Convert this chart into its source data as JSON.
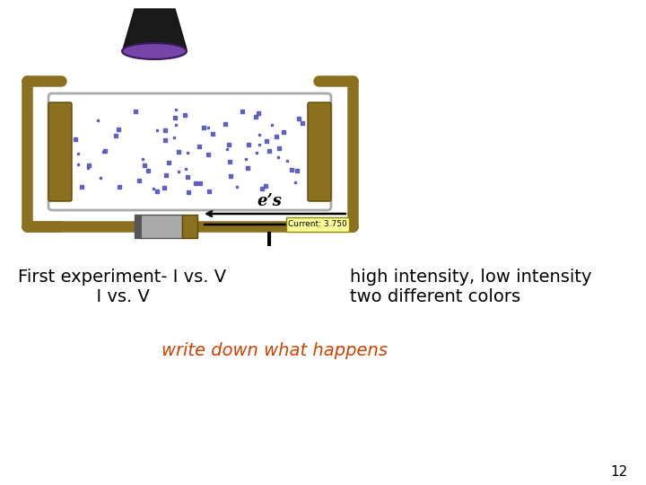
{
  "bg_color": "#ffffff",
  "text_line1": "First experiment- I vs. V",
  "text_line1_right": "high intensity, low intensity",
  "text_line2": "I vs. V",
  "text_line2_right": "two different colors",
  "text_write_down": "write down what happens",
  "text_page_num": "12",
  "text_es": "e’s",
  "text_I": "I",
  "text_current": "Current: 3.750",
  "gold_color": "#8B7020",
  "box_outline": "#888888",
  "electron_color": "#5555bb",
  "beam_color_light": "#e8d8f0",
  "write_down_color": "#cc4400",
  "current_box_color": "#ffff99",
  "page_num_color": "#000000",
  "lamp_dark": "#1a1a1a",
  "lamp_purple": "#8844aa",
  "battery_gray": "#888888",
  "battery_dark": "#444444"
}
